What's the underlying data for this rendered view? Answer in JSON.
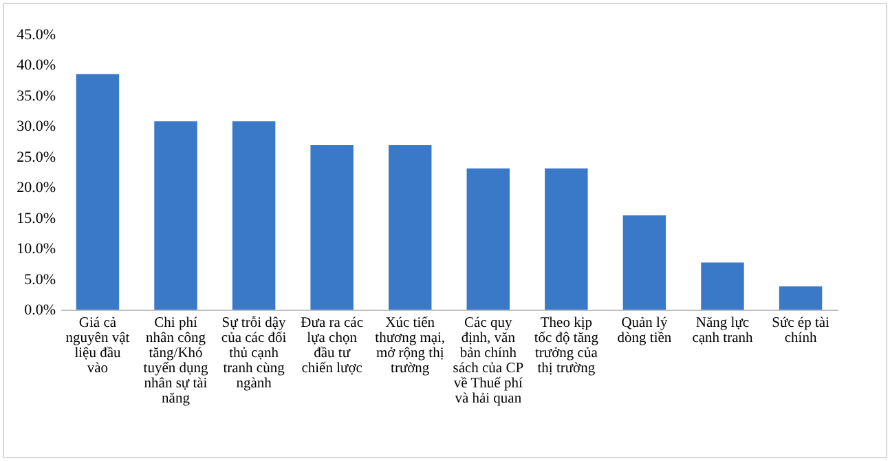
{
  "chart_data": {
    "type": "bar",
    "categories": [
      "Giá cả nguyên vật liệu đầu vào",
      "Chi phí nhân công tăng/Khó tuyển dụng nhân sự tài năng",
      "Sự trỗi dậy của các đối thủ cạnh tranh cùng ngành",
      "Đưa ra các lựa chọn đầu tư chiến lược",
      "Xúc tiến thương mại, mở rộng thị trường",
      "Các quy định, văn bản chính sách của CP về Thuế phí và hải quan",
      "Theo kịp tốc độ tăng trưởng của thị trường",
      "Quản lý dòng tiền",
      "Năng lực cạnh tranh",
      "Sức ép tài chính"
    ],
    "values": [
      38.5,
      30.8,
      30.8,
      26.9,
      26.9,
      23.1,
      23.1,
      15.4,
      7.7,
      3.8
    ],
    "color": "#3a78c8",
    "ylim": [
      0,
      45
    ],
    "yticks": [
      {
        "value": 0,
        "label": "0.0%"
      },
      {
        "value": 5,
        "label": "5.0%"
      },
      {
        "value": 10,
        "label": "10.0%"
      },
      {
        "value": 15,
        "label": "15.0%"
      },
      {
        "value": 20,
        "label": "20.0%"
      },
      {
        "value": 25,
        "label": "25.0%"
      },
      {
        "value": 30,
        "label": "30.0%"
      },
      {
        "value": 35,
        "label": "35.0%"
      },
      {
        "value": 40,
        "label": "40.0%"
      },
      {
        "value": 45,
        "label": "45.0%"
      }
    ],
    "grid": false
  }
}
